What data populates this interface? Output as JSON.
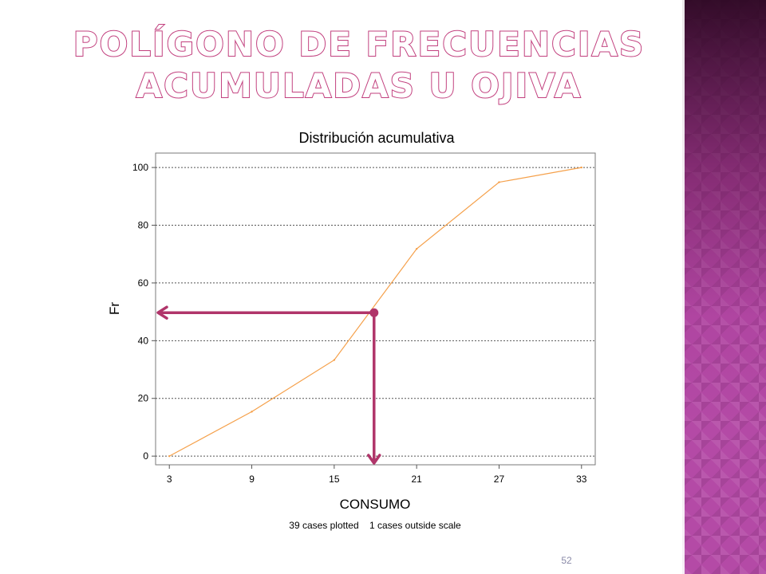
{
  "slide": {
    "title_line1": "POLÍGONO DE FRECUENCIAS",
    "title_line2": "ACUMULADAS U OJIVA",
    "slide_number": "52",
    "accent_color": "#c2417f",
    "strip_color": "#b44aa6"
  },
  "chart_data": {
    "type": "line",
    "title": "Distribución acumulativa",
    "xlabel": "CONSUMO",
    "ylabel": "Fr",
    "footnote": "39 cases plotted    1 cases outside scale",
    "xlim": [
      2,
      34
    ],
    "ylim": [
      -3,
      105
    ],
    "x_ticks": [
      3,
      9,
      15,
      21,
      27,
      33
    ],
    "y_ticks": [
      0,
      20,
      40,
      60,
      80,
      100
    ],
    "grid": "horizontal dotted",
    "line_color": "#f5a04a",
    "series": [
      {
        "x": [
          3,
          9,
          15,
          21,
          27,
          33
        ],
        "values": [
          0,
          15.4,
          33.3,
          71.8,
          94.9,
          100
        ]
      }
    ],
    "annotation": {
      "color": "#b0356a",
      "point": {
        "x": 17.9,
        "y": 49.7
      },
      "description_arrows": "horizontal to y-axis and vertical to x-axis"
    }
  }
}
